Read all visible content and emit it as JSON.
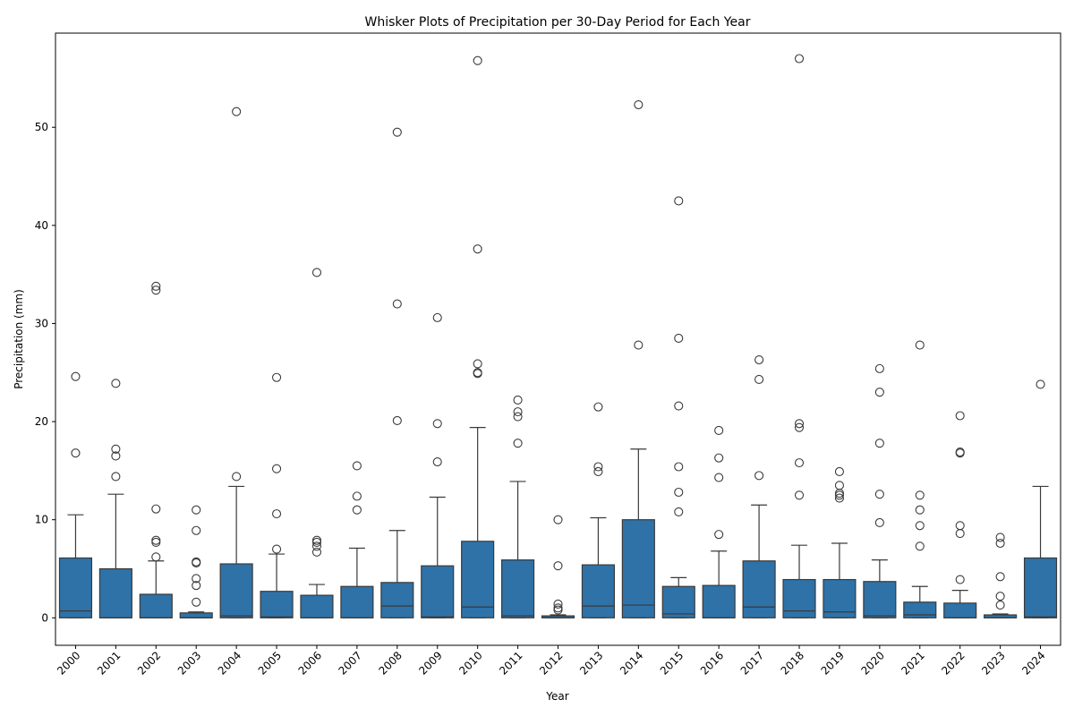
{
  "chart_data": {
    "type": "box",
    "title": "Whisker Plots of Precipitation per 30-Day Period for Each Year",
    "xlabel": "Year",
    "ylabel": "Precipitation (mm)",
    "ylim": [
      -2.8,
      59.6
    ],
    "yticks": [
      0,
      10,
      20,
      30,
      40,
      50
    ],
    "grid": false,
    "box_color": "#2e72a8",
    "line_color": "#3a3a3a",
    "categories": [
      "2000",
      "2001",
      "2002",
      "2003",
      "2004",
      "2005",
      "2006",
      "2007",
      "2008",
      "2009",
      "2010",
      "2011",
      "2012",
      "2013",
      "2014",
      "2015",
      "2016",
      "2017",
      "2018",
      "2019",
      "2020",
      "2021",
      "2022",
      "2023",
      "2024"
    ],
    "boxes": [
      {
        "year": "2000",
        "min": 0,
        "q1": 0,
        "median": 0.7,
        "q3": 6.1,
        "max": 10.5,
        "outliers": [
          24.6,
          16.8
        ]
      },
      {
        "year": "2001",
        "min": 0,
        "q1": 0,
        "median": 0,
        "q3": 5.0,
        "max": 12.6,
        "outliers": [
          23.9,
          17.2,
          16.5,
          14.4
        ]
      },
      {
        "year": "2002",
        "min": 0,
        "q1": 0,
        "median": 0,
        "q3": 2.4,
        "max": 5.8,
        "outliers": [
          33.8,
          33.4,
          11.1,
          7.9,
          7.7,
          6.2
        ]
      },
      {
        "year": "2003",
        "min": 0,
        "q1": 0,
        "median": 0,
        "q3": 0.5,
        "max": 0.6,
        "outliers": [
          11.0,
          8.9,
          5.7,
          5.6,
          4.0,
          3.3,
          1.6
        ]
      },
      {
        "year": "2004",
        "min": 0,
        "q1": 0,
        "median": 0.2,
        "q3": 5.5,
        "max": 13.4,
        "outliers": [
          51.6,
          14.4
        ]
      },
      {
        "year": "2005",
        "min": 0,
        "q1": 0,
        "median": 0.1,
        "q3": 2.7,
        "max": 6.5,
        "outliers": [
          24.5,
          15.2,
          10.6,
          7.0
        ]
      },
      {
        "year": "2006",
        "min": 0,
        "q1": 0,
        "median": 0,
        "q3": 2.3,
        "max": 3.4,
        "outliers": [
          35.2,
          7.9,
          7.7,
          7.3,
          6.7
        ]
      },
      {
        "year": "2007",
        "min": 0,
        "q1": 0,
        "median": 0,
        "q3": 3.2,
        "max": 7.1,
        "outliers": [
          15.5,
          12.4,
          11.0
        ]
      },
      {
        "year": "2008",
        "min": 0,
        "q1": 0,
        "median": 1.2,
        "q3": 3.6,
        "max": 8.9,
        "outliers": [
          49.5,
          32.0,
          20.1
        ]
      },
      {
        "year": "2009",
        "min": 0,
        "q1": 0,
        "median": 0.1,
        "q3": 5.3,
        "max": 12.3,
        "outliers": [
          30.6,
          19.8,
          15.9
        ]
      },
      {
        "year": "2010",
        "min": 0,
        "q1": 0,
        "median": 1.1,
        "q3": 7.8,
        "max": 19.4,
        "outliers": [
          56.8,
          37.6,
          25.9,
          25.0,
          24.9
        ]
      },
      {
        "year": "2011",
        "min": 0,
        "q1": 0,
        "median": 0.2,
        "q3": 5.9,
        "max": 13.9,
        "outliers": [
          22.2,
          21.0,
          20.5,
          17.8
        ]
      },
      {
        "year": "2012",
        "min": 0,
        "q1": 0,
        "median": 0,
        "q3": 0.2,
        "max": 0.3,
        "outliers": [
          10.0,
          5.3,
          1.4,
          1.0,
          0.8
        ]
      },
      {
        "year": "2013",
        "min": 0,
        "q1": 0,
        "median": 1.2,
        "q3": 5.4,
        "max": 10.2,
        "outliers": [
          21.5,
          15.4,
          14.9
        ]
      },
      {
        "year": "2014",
        "min": 0,
        "q1": 0,
        "median": 1.3,
        "q3": 10.0,
        "max": 17.2,
        "outliers": [
          52.3,
          27.8
        ]
      },
      {
        "year": "2015",
        "min": 0,
        "q1": 0,
        "median": 0.4,
        "q3": 3.2,
        "max": 4.1,
        "outliers": [
          42.5,
          28.5,
          21.6,
          15.4,
          12.8,
          10.8
        ]
      },
      {
        "year": "2016",
        "min": 0,
        "q1": 0,
        "median": 0,
        "q3": 3.3,
        "max": 6.8,
        "outliers": [
          19.1,
          16.3,
          14.3,
          8.5
        ]
      },
      {
        "year": "2017",
        "min": 0,
        "q1": 0,
        "median": 1.1,
        "q3": 5.8,
        "max": 11.5,
        "outliers": [
          26.3,
          24.3,
          14.5
        ]
      },
      {
        "year": "2018",
        "min": 0,
        "q1": 0,
        "median": 0.7,
        "q3": 3.9,
        "max": 7.4,
        "outliers": [
          57.0,
          19.8,
          19.4,
          15.8,
          12.5
        ]
      },
      {
        "year": "2019",
        "min": 0,
        "q1": 0,
        "median": 0.6,
        "q3": 3.9,
        "max": 7.6,
        "outliers": [
          14.9,
          13.5,
          12.7,
          12.5,
          12.2
        ]
      },
      {
        "year": "2020",
        "min": 0,
        "q1": 0,
        "median": 0.2,
        "q3": 3.7,
        "max": 5.9,
        "outliers": [
          25.4,
          23.0,
          17.8,
          12.6,
          9.7
        ]
      },
      {
        "year": "2021",
        "min": 0,
        "q1": 0,
        "median": 0.3,
        "q3": 1.6,
        "max": 3.2,
        "outliers": [
          27.8,
          12.5,
          11.0,
          9.4,
          7.3
        ]
      },
      {
        "year": "2022",
        "min": 0,
        "q1": 0,
        "median": 0,
        "q3": 1.5,
        "max": 2.8,
        "outliers": [
          20.6,
          16.9,
          16.8,
          9.4,
          8.6,
          3.9
        ]
      },
      {
        "year": "2023",
        "min": 0,
        "q1": 0,
        "median": 0,
        "q3": 0.3,
        "max": 0.4,
        "outliers": [
          8.2,
          7.6,
          4.2,
          2.2,
          1.3
        ]
      },
      {
        "year": "2024",
        "min": 0,
        "q1": 0,
        "median": 0.1,
        "q3": 6.1,
        "max": 13.4,
        "outliers": [
          23.8
        ]
      }
    ]
  }
}
